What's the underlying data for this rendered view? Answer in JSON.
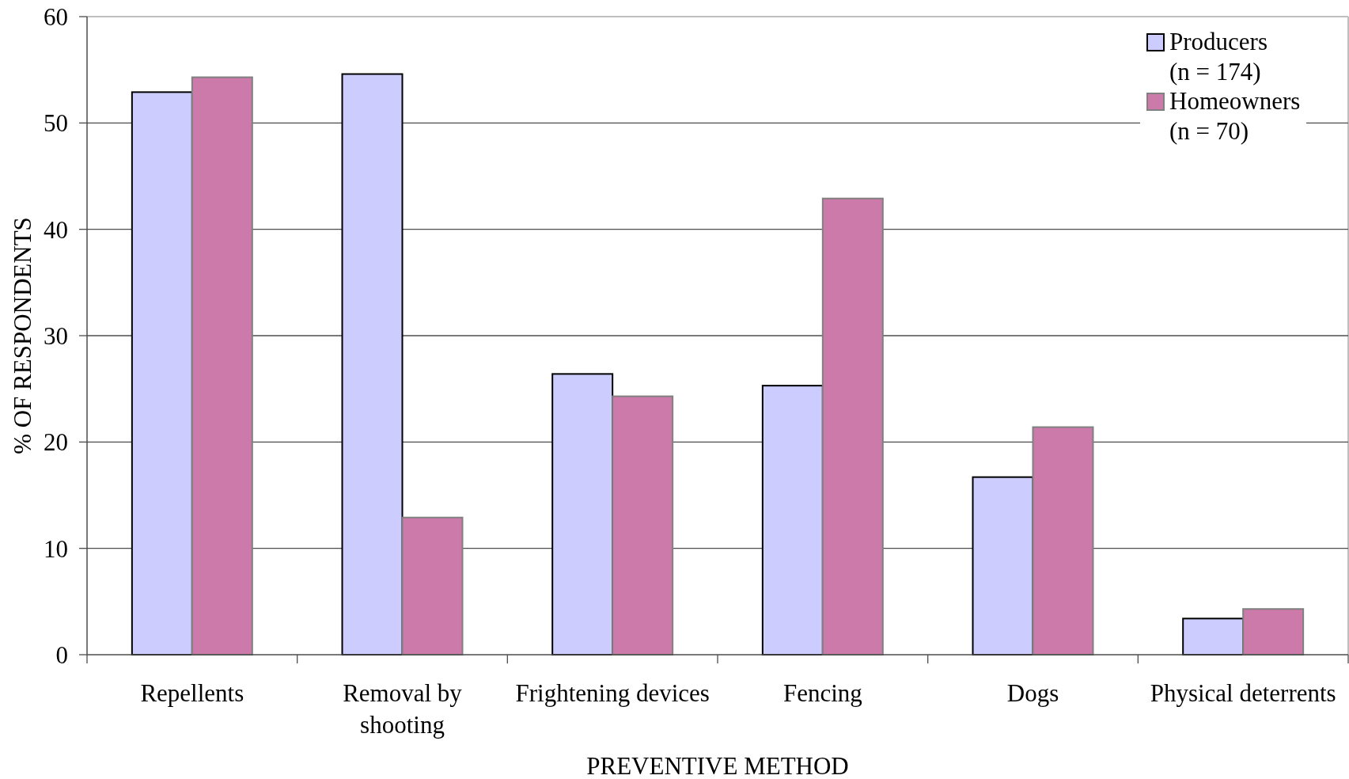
{
  "chart_data": {
    "type": "bar",
    "xlabel": "PREVENTIVE METHOD",
    "ylabel": "% OF RESPONDENTS",
    "categories": [
      "Repellents",
      "Removal by\nshooting",
      "Frightening devices",
      "Fencing",
      "Dogs",
      "Physical deterrents"
    ],
    "series": [
      {
        "name": "Producers\n(n = 174)",
        "color": "#ccccff",
        "values": [
          52.9,
          54.6,
          26.4,
          25.3,
          16.7,
          3.4
        ]
      },
      {
        "name": "Homeowners\n(n = 70)",
        "color": "#cc7aa9",
        "values": [
          54.3,
          12.9,
          24.3,
          42.9,
          21.4,
          4.3
        ]
      }
    ],
    "ylim": [
      0,
      60
    ],
    "yticks": [
      0,
      10,
      20,
      30,
      40,
      50,
      60
    ],
    "grid": "y",
    "legend": "top right"
  }
}
